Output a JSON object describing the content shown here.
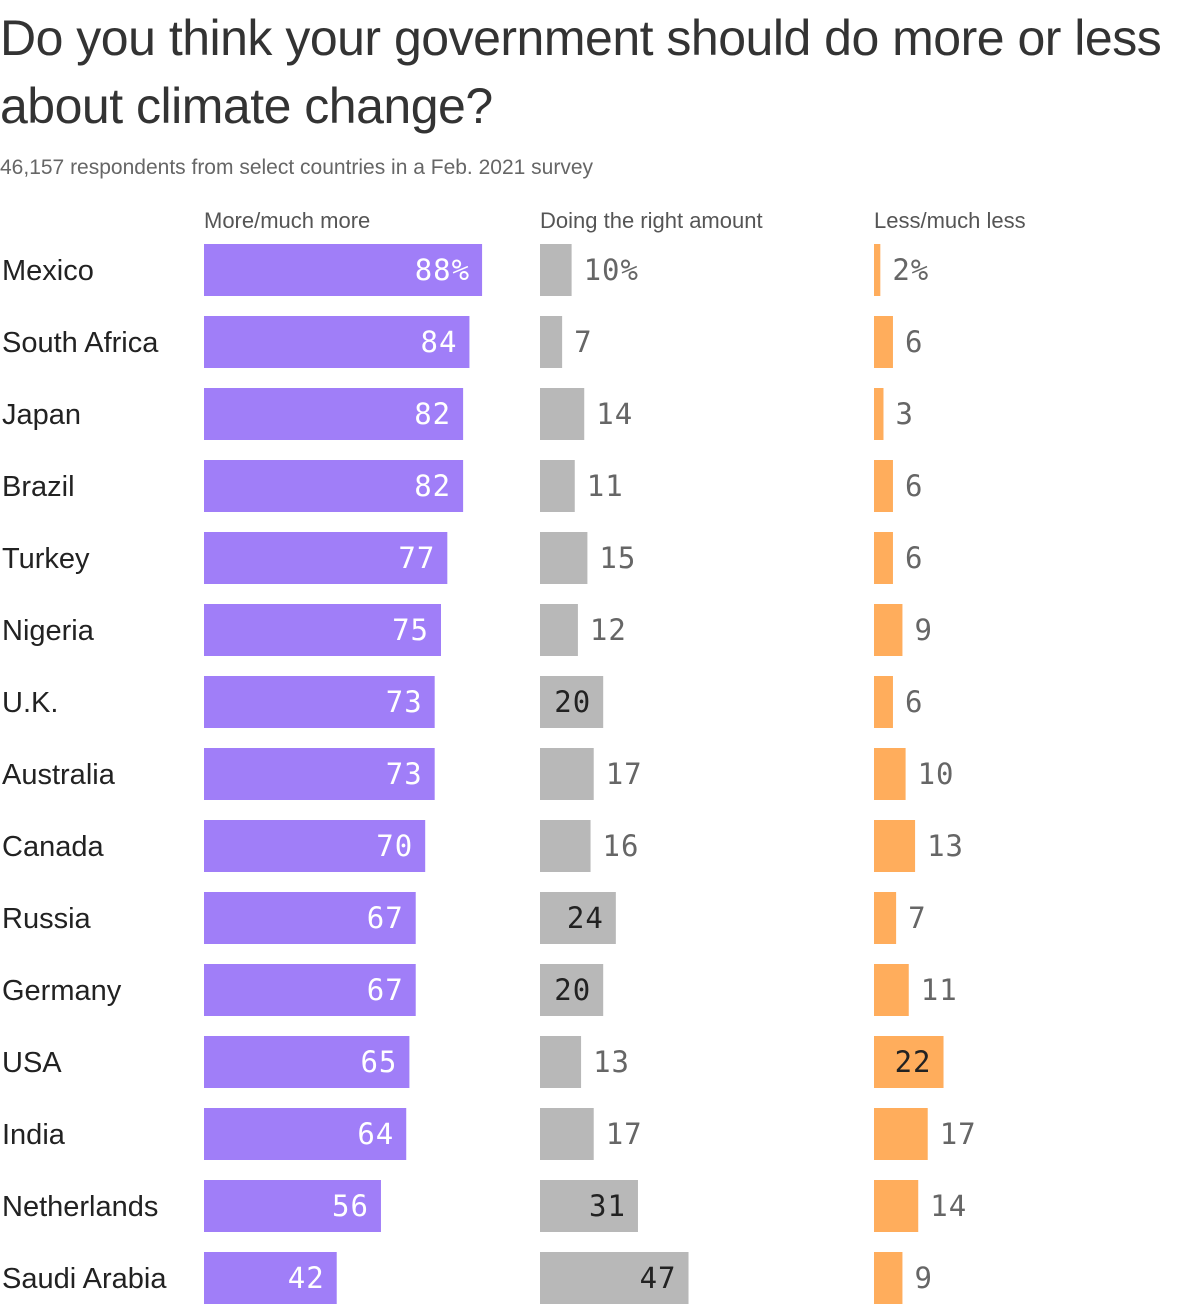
{
  "title": "Do you think your government should do more or less about climate change?",
  "subtitle": "46,157 respondents from select countries in a Feb. 2021 survey",
  "chart_data": {
    "type": "bar",
    "orientation": "horizontal",
    "layout": "small-multiples",
    "unit": "%",
    "categories": [
      "Mexico",
      "South Africa",
      "Japan",
      "Brazil",
      "Turkey",
      "Nigeria",
      "U.K.",
      "Australia",
      "Canada",
      "Russia",
      "Germany",
      "USA",
      "India",
      "Netherlands",
      "Saudi Arabia"
    ],
    "series": [
      {
        "name": "More/much more",
        "color": "#a07ef8",
        "values": [
          88,
          84,
          82,
          82,
          77,
          75,
          73,
          73,
          70,
          67,
          67,
          65,
          64,
          56,
          42
        ]
      },
      {
        "name": "Doing the right amount",
        "color": "#b8b8b8",
        "values": [
          10,
          7,
          14,
          11,
          15,
          12,
          20,
          17,
          16,
          24,
          20,
          13,
          17,
          31,
          47
        ]
      },
      {
        "name": "Less/much less",
        "color": "#ffad5c",
        "values": [
          2,
          6,
          3,
          6,
          6,
          9,
          6,
          10,
          13,
          7,
          11,
          22,
          17,
          14,
          9
        ]
      }
    ]
  }
}
